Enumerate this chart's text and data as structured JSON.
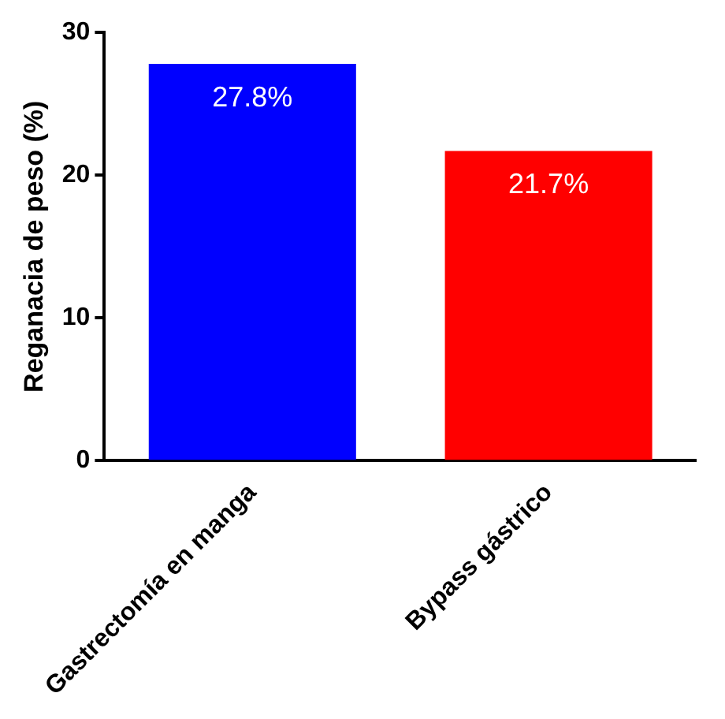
{
  "chart_data": {
    "type": "bar",
    "ylabel": "Reganacia de peso (%)",
    "categories": [
      "Gastrectomía en manga",
      "Bypass gástrico"
    ],
    "values": [
      27.8,
      21.7
    ],
    "colors": [
      "#0000ff",
      "#ff0000"
    ],
    "value_labels": [
      "27.8%",
      "21.7%"
    ],
    "ylim": [
      0,
      30
    ],
    "yticks": [
      0,
      10,
      20,
      30
    ],
    "grid": false,
    "legend": false
  }
}
